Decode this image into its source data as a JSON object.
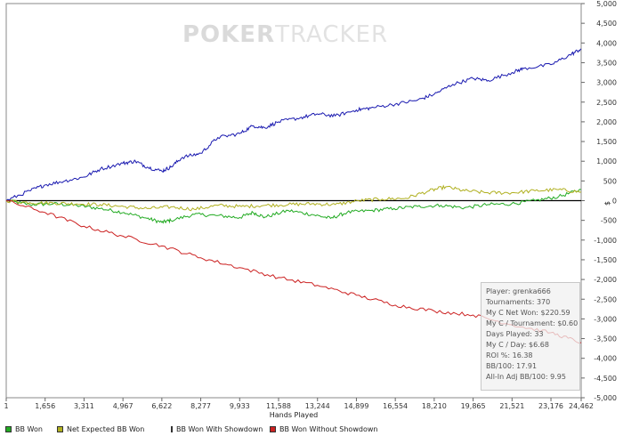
{
  "watermark": {
    "bold": "POKER",
    "thin": "TRACKER"
  },
  "chart_data": {
    "type": "line",
    "xlabel": "Hands Played",
    "ylabel": "$",
    "xlim": [
      1,
      24462
    ],
    "ylim": [
      -5000,
      5000
    ],
    "x_ticks": [
      "1",
      "1,656",
      "3,311",
      "4,967",
      "6,622",
      "8,277",
      "9,933",
      "11,588",
      "13,244",
      "14,899",
      "16,554",
      "18,210",
      "19,865",
      "21,521",
      "23,176",
      "24,462"
    ],
    "x_tick_values": [
      1,
      1656,
      3311,
      4967,
      6622,
      8277,
      9933,
      11588,
      13244,
      14899,
      16554,
      18210,
      19865,
      21521,
      23176,
      24462
    ],
    "y_ticks": [
      "5,000",
      "4,500",
      "4,000",
      "3,500",
      "3,000",
      "2,500",
      "2,000",
      "1,500",
      "1,000",
      "500",
      "0",
      "-500",
      "-1,000",
      "-1,500",
      "-2,000",
      "-2,500",
      "-3,000",
      "-3,500",
      "-4,000",
      "-4,500",
      "-5,000"
    ],
    "y_tick_values": [
      5000,
      4500,
      4000,
      3500,
      3000,
      2500,
      2000,
      1500,
      1000,
      500,
      0,
      -500,
      -1000,
      -1500,
      -2000,
      -2500,
      -3000,
      -3500,
      -4000,
      -4500,
      -5000
    ],
    "legend_position": "bottom",
    "grid": false,
    "series": [
      {
        "name": "BB Won",
        "color": "#22aa22",
        "x": [
          1,
          1000,
          2000,
          3000,
          4000,
          5000,
          6000,
          6622,
          7000,
          8000,
          9000,
          9933,
          10500,
          11000,
          12000,
          13000,
          13800,
          14500,
          15500,
          16500,
          17500,
          18500,
          19500,
          20500,
          21500,
          22500,
          23500,
          24462
        ],
        "y": [
          0,
          -100,
          -80,
          -120,
          -200,
          -300,
          -450,
          -550,
          -500,
          -350,
          -380,
          -430,
          -300,
          -420,
          -250,
          -350,
          -450,
          -300,
          -250,
          -200,
          -150,
          -120,
          -180,
          -100,
          -80,
          0,
          100,
          280
        ]
      },
      {
        "name": "Net Expected BB Won",
        "color": "#b0b020",
        "x": [
          1,
          1000,
          2000,
          3000,
          4000,
          5000,
          6000,
          7000,
          8000,
          9000,
          10000,
          11000,
          12000,
          13000,
          14000,
          15000,
          16000,
          17000,
          18000,
          18700,
          19500,
          20500,
          21500,
          22500,
          23500,
          24462
        ],
        "y": [
          0,
          -50,
          -60,
          -80,
          -100,
          -150,
          -200,
          -160,
          -220,
          -120,
          -150,
          -120,
          -100,
          -80,
          -100,
          0,
          40,
          60,
          250,
          350,
          250,
          200,
          200,
          250,
          280,
          220
        ]
      },
      {
        "name": "BB Won With Showdown",
        "color": "#1a1ab0",
        "x": [
          1,
          1000,
          1656,
          2500,
          3311,
          4000,
          4967,
          5500,
          6000,
          6622,
          7000,
          7500,
          8277,
          9000,
          9933,
          10500,
          11000,
          11588,
          12500,
          13244,
          14000,
          14899,
          15500,
          16554,
          17500,
          18210,
          19000,
          19865,
          20500,
          21521,
          22000,
          23176,
          24000,
          24462
        ],
        "y": [
          0,
          250,
          400,
          500,
          600,
          800,
          950,
          1000,
          850,
          750,
          850,
          1100,
          1200,
          1600,
          1700,
          1900,
          1850,
          2000,
          2100,
          2200,
          2150,
          2300,
          2350,
          2450,
          2550,
          2700,
          2950,
          3100,
          3050,
          3250,
          3350,
          3450,
          3700,
          3850
        ]
      },
      {
        "name": "BB Won Without Showdown",
        "color": "#cc2222",
        "x": [
          1,
          1656,
          3311,
          4967,
          6622,
          8277,
          9933,
          11588,
          13244,
          14899,
          16554,
          18210,
          19865,
          21521,
          23176,
          24462
        ],
        "y": [
          0,
          -300,
          -650,
          -900,
          -1150,
          -1450,
          -1700,
          -1950,
          -2150,
          -2400,
          -2650,
          -2800,
          -2900,
          -3150,
          -3350,
          -3600
        ]
      }
    ]
  },
  "legend": [
    {
      "label": "BB Won",
      "color": "#22aa22"
    },
    {
      "label": "Net Expected BB Won",
      "color": "#b0b020"
    },
    {
      "label": "BB Won With Showdown",
      "color": "#1a1ab0"
    },
    {
      "label": "BB Won Without Showdown",
      "color": "#cc2222"
    }
  ],
  "stats": {
    "player": "Player: grenka666",
    "tournaments": "Tournaments: 370",
    "net_won": "My C Net Won: $220.59",
    "per_tournament": "My C / Tournament: $0.60",
    "days_played": "Days Played: 33",
    "per_day": "My C / Day: $6.68",
    "roi": "ROI %: 16.38",
    "bb100": "BB/100: 17.91",
    "allin_bb100": "All-In Adj BB/100: 9.95"
  }
}
